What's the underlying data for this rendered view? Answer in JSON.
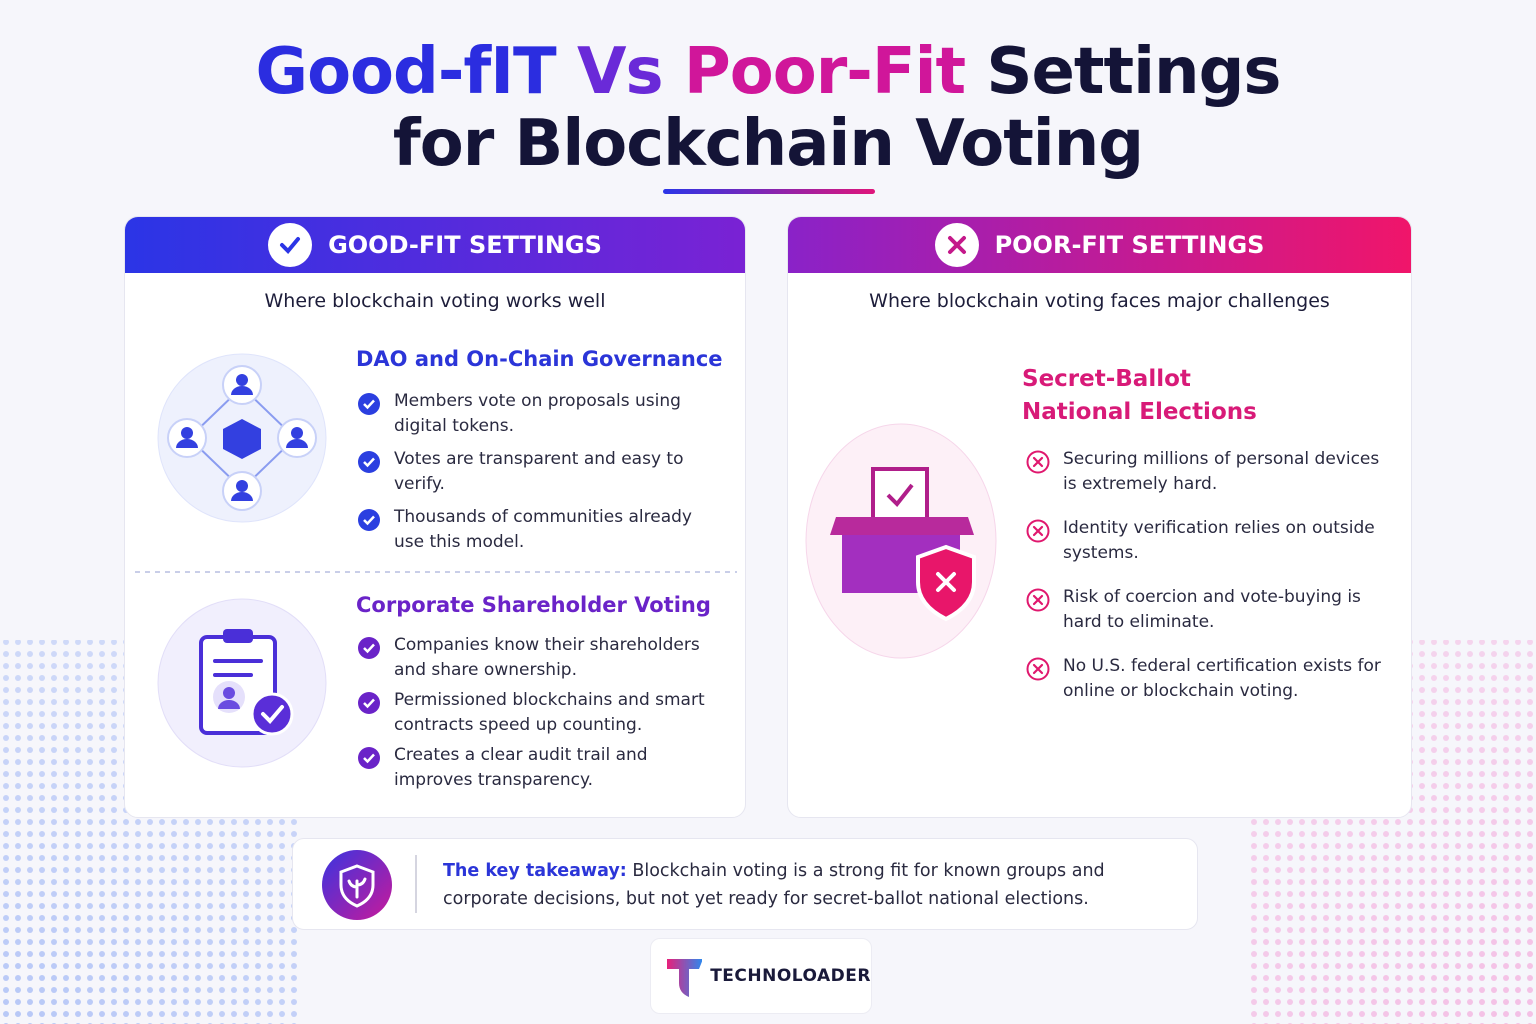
{
  "title": {
    "line1": [
      "Good-fIT",
      "Vs",
      "Poor-Fit",
      "Settings"
    ],
    "line2": "for Blockchain Voting"
  },
  "good": {
    "header": "GOOD-FIT SETTINGS",
    "subtitle": "Where blockchain voting works well",
    "sections": [
      {
        "heading": "DAO and On-Chain Governance",
        "items": [
          "Members vote on proposals using digital tokens.",
          "Votes are transparent and easy to verify.",
          "Thousands of communities already use this model."
        ]
      },
      {
        "heading": "Corporate Shareholder Voting",
        "items": [
          "Companies know their shareholders and share ownership.",
          "Permissioned blockchains and smart contracts speed up counting.",
          "Creates a clear audit trail and improves transparency."
        ]
      }
    ]
  },
  "poor": {
    "header": "POOR-FIT SETTINGS",
    "subtitle": "Where blockchain voting faces major challenges",
    "heading": "Secret-Ballot National Elections",
    "items": [
      "Securing millions of personal devices is extremely hard.",
      "Identity verification relies on outside systems.",
      "Risk of coercion and vote-buying is hard to eliminate.",
      "No U.S. federal certification exists for online or blockchain voting."
    ]
  },
  "takeaway": {
    "label": "The key takeaway:",
    "text": "Blockchain voting is a strong fit for known groups and corporate decisions, but not yet ready for secret-ballot national elections."
  },
  "brand": "TECHNOLOADER"
}
